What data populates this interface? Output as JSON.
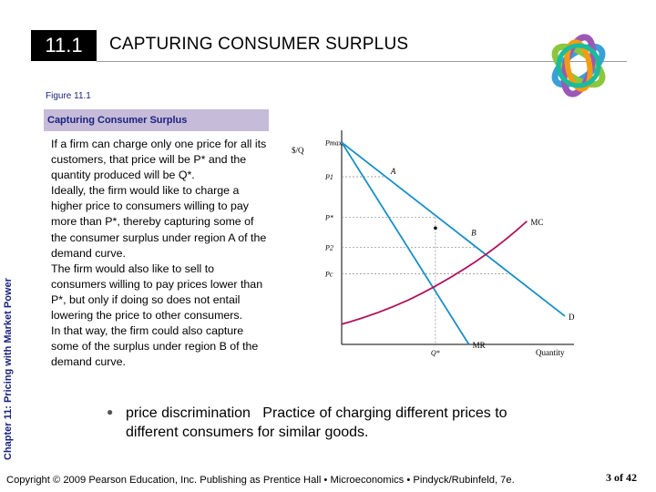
{
  "header": {
    "chapter_number": "11.1",
    "title": "CAPTURING CONSUMER SURPLUS"
  },
  "side_label": "Chapter 11: Pricing with Market Power",
  "figure": {
    "number": "Figure 11.1",
    "caption": "Capturing Consumer Surplus",
    "paragraphs": [
      "If a firm can charge only one price for all its customers, that price will be P* and the quantity produced will be Q*.",
      "Ideally, the firm would like to charge a higher price to consumers willing to pay more than P*, thereby capturing some of the consumer surplus under region A of the demand curve.",
      "The firm would also like to sell to consumers willing to pay prices lower than P*, but only if doing so does not entail lowering the price to other consumers.",
      "In that way, the firm could also capture some of the surplus under region B of the demand curve."
    ]
  },
  "chart_data": {
    "type": "line",
    "xlabel": "Quantity",
    "ylabel": "$/Q",
    "y_tick_labels": [
      "Pmax",
      "P1",
      "P*",
      "P2",
      "Pc"
    ],
    "x_tick_labels": [
      "Q*"
    ],
    "series": [
      {
        "name": "D",
        "points": [
          [
            0,
            10
          ],
          [
            10,
            1.4
          ]
        ],
        "color": "#1a8fc7"
      },
      {
        "name": "MR",
        "points": [
          [
            0,
            10
          ],
          [
            5.7,
            0
          ]
        ],
        "color": "#1a8fc7"
      },
      {
        "name": "MC",
        "points": [
          [
            0,
            1.0
          ],
          [
            3,
            2.2
          ],
          [
            6,
            4.1
          ],
          [
            8.3,
            6.1
          ]
        ],
        "color": "#b0125d"
      }
    ],
    "region_labels": [
      "A",
      "B"
    ],
    "annotations": [
      {
        "label": "Pmax",
        "y": 10
      },
      {
        "label": "P1",
        "y": 8.3
      },
      {
        "label": "P*",
        "y": 6.3
      },
      {
        "label": "P2",
        "y": 4.8
      },
      {
        "label": "Pc",
        "y": 3.5
      },
      {
        "label": "Q*",
        "x": 4.2
      }
    ],
    "xlim": [
      0,
      10
    ],
    "ylim": [
      0,
      10.6
    ]
  },
  "definition": {
    "bullet": "l",
    "term": "price discrimination",
    "text": "Practice of charging different prices to different consumers for similar goods."
  },
  "footer": {
    "copyright": "Copyright © 2009 Pearson Education, Inc. Publishing as Prentice Hall • Microeconomics • Pindyck/Rubinfeld, 7e.",
    "page": "3 of 42"
  }
}
